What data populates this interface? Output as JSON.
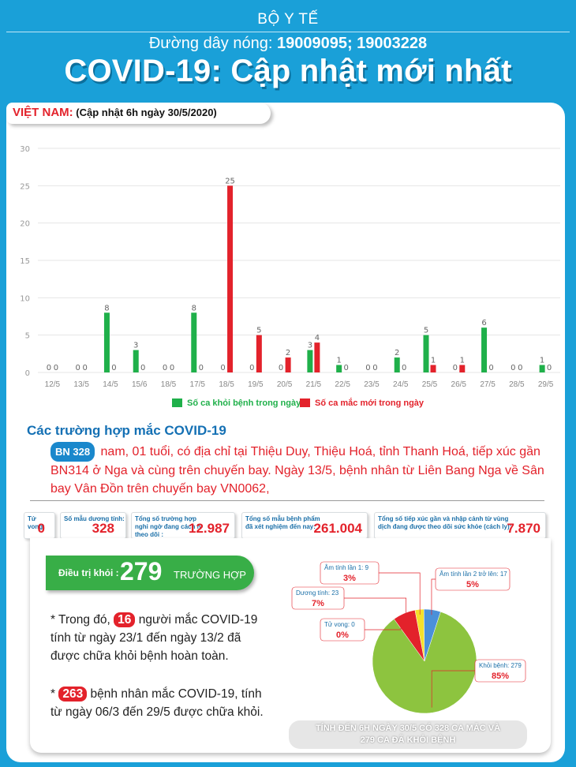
{
  "header": {
    "ministry": "BỘ Y TẾ",
    "hotline_prefix": "Đường dây nóng: ",
    "hotline_numbers": "19009095; 19003228",
    "title": "COVID-19: Cập nhật mới nhất"
  },
  "update_label": {
    "country": "VIỆT NAM:",
    "updated": "(Cập nhật 6h ngày 30/5/2020)"
  },
  "colors": {
    "recovered": "#1fb04a",
    "new_cases": "#e3222b",
    "accent_blue": "#1aa0d8"
  },
  "chart_data": {
    "type": "bar",
    "categories": [
      "12/5",
      "13/5",
      "14/5",
      "15/6",
      "18/5",
      "17/5",
      "18/5",
      "19/5",
      "20/5",
      "21/5",
      "22/5",
      "23/5",
      "24/5",
      "25/5",
      "26/5",
      "27/5",
      "28/5",
      "29/5"
    ],
    "series": [
      {
        "name": "Số ca khỏi bệnh trong ngày",
        "color": "#1fb04a",
        "values": [
          0,
          0,
          8,
          3,
          0,
          8,
          0,
          0,
          0,
          3,
          1,
          0,
          2,
          5,
          0,
          6,
          0,
          1
        ]
      },
      {
        "name": "Số ca mắc mới trong ngày",
        "color": "#e3222b",
        "values": [
          0,
          0,
          0,
          0,
          0,
          0,
          25,
          5,
          2,
          4,
          0,
          0,
          0,
          1,
          1,
          0,
          0,
          0
        ]
      }
    ],
    "ylim": [
      0,
      30
    ],
    "yticks": [
      0,
      5,
      10,
      15,
      20,
      25,
      30
    ],
    "grid": true,
    "legend": "bottom"
  },
  "cases": {
    "title": "Các trường hợp mắc COVID-19",
    "badge": "BN 328",
    "text": "nam, 01 tuổi, có địa chỉ tại Thiệu Duy, Thiệu Hoá, tỉnh Thanh Hoá, tiếp xúc gần BN314 ở Nga và cùng trên chuyến bay. Ngày 13/5, bệnh nhân từ Liên Bang Nga về Sân bay Vân Đồn trên chuyến bay VN0062,"
  },
  "stats": [
    {
      "label": "Tử vong:",
      "value": "0"
    },
    {
      "label": "Số mẫu dương tính:",
      "value": "328"
    },
    {
      "label": "Tổng số trường hợp nghi ngờ đang cách ly theo dõi :",
      "value": "12.987"
    },
    {
      "label": "Tổng số mẫu bệnh phẩm đã xét nghiệm đến nay:",
      "value": "261.004"
    },
    {
      "label": "Tổng số tiếp xúc gần và nhập cảnh từ vùng dịch đang được theo dõi sức khỏe (cách ly):",
      "value": "7.870"
    }
  ],
  "recovered": {
    "label": "Điều trị khỏi :",
    "number": "279",
    "unit": "TRƯỜNG HỢP"
  },
  "notes": {
    "n1_pre": "* Trong đó,",
    "n1_num": "16",
    "n1_post": "người mắc COVID-19 tính từ ngày 23/1 đến ngày 13/2 đã được chữa khỏi bệnh hoàn toàn.",
    "n2_pre": "*",
    "n2_num": "263",
    "n2_post": "bệnh nhân mắc COVID-19, tính từ ngày 06/3 đến 29/5 được chữa khỏi."
  },
  "pie": {
    "type": "pie",
    "slices": [
      {
        "label": "Khỏi bệnh: 279",
        "pct": "85%",
        "value": 279,
        "color": "#8dc43f"
      },
      {
        "label": "Tử vong: 0",
        "pct": "0%",
        "value": 0,
        "color": "#666666"
      },
      {
        "label": "Dương tính: 23",
        "pct": "7%",
        "value": 23,
        "color": "#e3222b"
      },
      {
        "label": "Âm tính lần 1: 9",
        "pct": "3%",
        "value": 9,
        "color": "#f5e02a"
      },
      {
        "label": "Âm tính lần 2 trở lên: 17",
        "pct": "5%",
        "value": 17,
        "color": "#4a90d9"
      }
    ]
  },
  "footer": {
    "line1": "TÍNH ĐẾN 6H NGÀY 30/5 CÓ 328 CA MẮC VÀ",
    "line2": "279  CA ĐÃ KHỎI BỆNH"
  }
}
